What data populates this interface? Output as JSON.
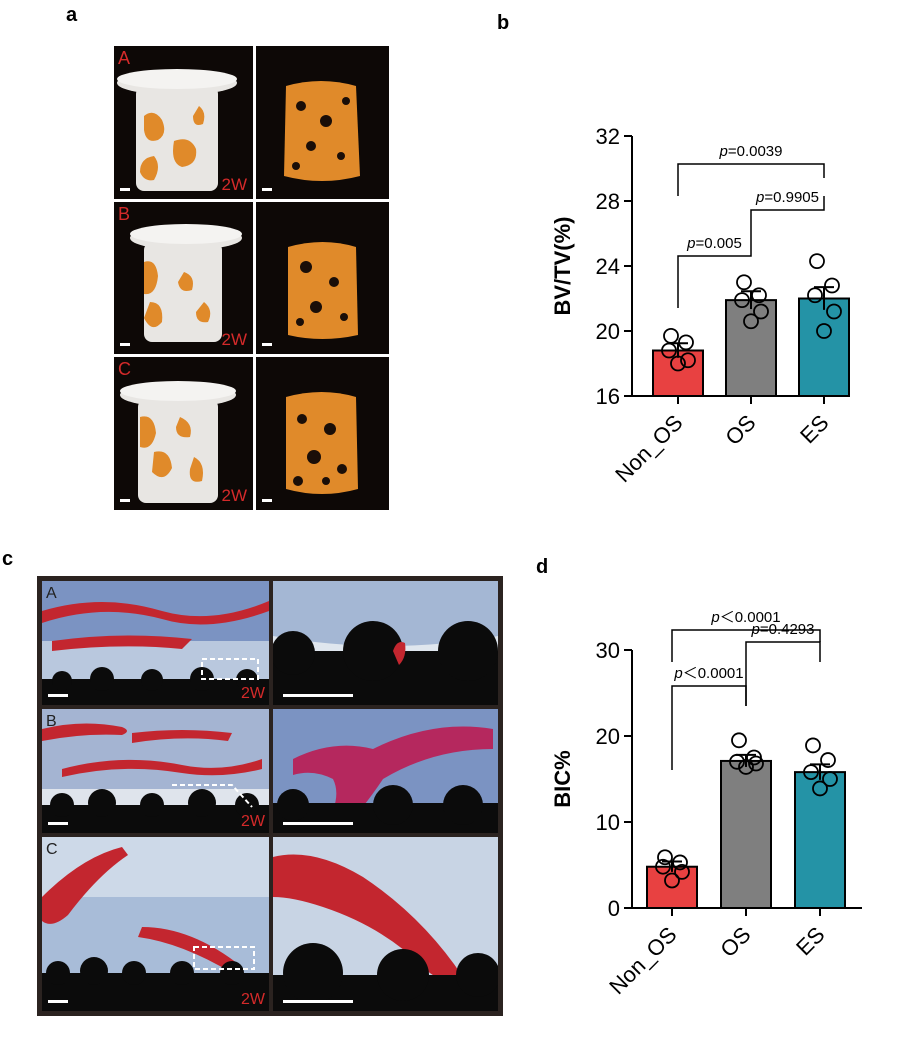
{
  "panels": {
    "a": {
      "letter": "a",
      "rows": [
        {
          "label": "A",
          "week": "2W"
        },
        {
          "label": "B",
          "week": "2W"
        },
        {
          "label": "C",
          "week": "2W"
        }
      ]
    },
    "b": {
      "letter": "b"
    },
    "c": {
      "letter": "c",
      "rows": [
        {
          "label": "A",
          "week": "2W"
        },
        {
          "label": "B",
          "week": "2W"
        },
        {
          "label": "C",
          "week": "2W"
        }
      ]
    },
    "d": {
      "letter": "d"
    }
  },
  "colors": {
    "non_os": "#e84141",
    "os": "#7f7f7f",
    "es": "#2493a6",
    "bone_orange": "#e08a2a",
    "implant_white": "#e8e6e3",
    "bone_red": "#c3262f",
    "tissue_blue": "#5a78b5"
  },
  "chart_data": [
    {
      "type": "bar",
      "categories": [
        "Non_OS",
        "OS",
        "ES"
      ],
      "values": [
        18.8,
        21.9,
        22.0
      ],
      "errors": [
        0.45,
        0.55,
        0.7
      ],
      "points": [
        [
          19.7,
          19.3,
          18.8,
          18.2,
          18.0
        ],
        [
          23.0,
          22.2,
          21.9,
          21.2,
          20.6
        ],
        [
          24.3,
          22.8,
          22.2,
          21.2,
          20.0
        ]
      ],
      "title": "",
      "xlabel": "",
      "ylabel": "BV/TV(%)",
      "ylim": [
        16,
        32
      ],
      "yticks": [
        "16",
        "20",
        "24",
        "28",
        "32"
      ],
      "comparisons": [
        {
          "from": 0,
          "to": 1,
          "label_prefix": "p",
          "label_value": "=0.005"
        },
        {
          "from": 1,
          "to": 2,
          "label_prefix": "p",
          "label_value": "=0.9905"
        },
        {
          "from": 0,
          "to": 2,
          "label_prefix": "p",
          "label_value": "=0.0039"
        }
      ]
    },
    {
      "type": "bar",
      "categories": [
        "Non_OS",
        "OS",
        "ES"
      ],
      "values": [
        4.8,
        17.1,
        15.8
      ],
      "errors": [
        0.6,
        0.7,
        0.9
      ],
      "points": [
        [
          5.9,
          5.3,
          4.8,
          4.2,
          3.2
        ],
        [
          19.5,
          17.5,
          17.0,
          16.8,
          16.4
        ],
        [
          18.9,
          17.2,
          15.8,
          15.0,
          13.9
        ]
      ],
      "title": "",
      "xlabel": "",
      "ylabel": "BIC%",
      "ylim": [
        0,
        30
      ],
      "yticks": [
        "0",
        "10",
        "20",
        "30"
      ],
      "comparisons": [
        {
          "from": 0,
          "to": 1,
          "label_prefix": "p",
          "label_value": "＜0.0001"
        },
        {
          "from": 1,
          "to": 2,
          "label_prefix": "p",
          "label_value": "=0.4293"
        },
        {
          "from": 0,
          "to": 2,
          "label_prefix": "p",
          "label_value": "＜0.0001"
        }
      ]
    }
  ]
}
